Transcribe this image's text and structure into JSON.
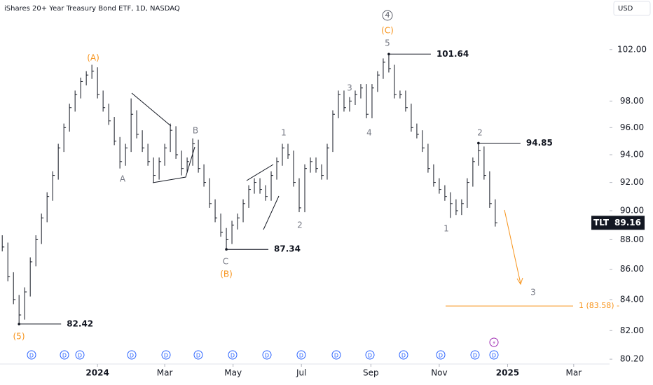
{
  "header": {
    "title": "iShares 20+ Year Treasury Bond ETF, 1D, NASDAQ",
    "currency": "USD"
  },
  "chart_data": {
    "type": "hlc",
    "log_scale": true,
    "color": "#131722",
    "x": [
      -85,
      -80,
      -75,
      -70,
      -65,
      -60,
      -55,
      -50,
      -45,
      -40,
      -35,
      -30,
      -25,
      -20,
      -15,
      -10,
      -5,
      0,
      5,
      10,
      15,
      20,
      25,
      30,
      35,
      40,
      45,
      50,
      55,
      60,
      65,
      70,
      75,
      80,
      85,
      90,
      95,
      100,
      105,
      110,
      115,
      120,
      125,
      130,
      135,
      140,
      145,
      150,
      155,
      160,
      165,
      170,
      175,
      180,
      185,
      190,
      195,
      200,
      205,
      210,
      215,
      220,
      225,
      230,
      235,
      240,
      245,
      250,
      255,
      260,
      265,
      270,
      275,
      280,
      285,
      290,
      295,
      300,
      305,
      310,
      315,
      320,
      325,
      330,
      335,
      340,
      345,
      350,
      355
    ],
    "high": [
      88.3,
      87.8,
      85.8,
      84.3,
      84.8,
      86.8,
      88.3,
      89.8,
      91.3,
      92.8,
      94.8,
      96.3,
      97.8,
      98.8,
      99.8,
      100.3,
      100.8,
      100.6,
      98.8,
      97.8,
      96.8,
      95.3,
      94.8,
      98.2,
      97.3,
      95.8,
      94.8,
      93.8,
      93.8,
      94.8,
      96.3,
      96.1,
      94.3,
      93.8,
      95.2,
      95.1,
      93.3,
      92.3,
      90.8,
      89.8,
      88.8,
      89.3,
      89.8,
      90.8,
      91.8,
      92.3,
      92.3,
      91.8,
      92.8,
      93.8,
      94.8,
      94.8,
      94.3,
      92.3,
      93.3,
      93.8,
      93.8,
      93.3,
      94.8,
      97.3,
      98.8,
      98.8,
      98.3,
      98.8,
      99.3,
      99.3,
      99.3,
      100.3,
      101.3,
      101.64,
      100.8,
      98.8,
      98.8,
      97.8,
      96.3,
      95.8,
      94.8,
      93.3,
      92.3,
      91.8,
      91.3,
      90.8,
      90.8,
      92.3,
      93.8,
      94.85,
      94.6,
      92.8,
      90.8
    ],
    "low": [
      87.2,
      85.2,
      83.7,
      82.42,
      82.7,
      84.2,
      86.2,
      87.7,
      89.2,
      90.7,
      92.2,
      94.2,
      95.7,
      97.2,
      98.2,
      99.2,
      99.7,
      98.2,
      97.2,
      96.2,
      94.7,
      93.0,
      93.2,
      94.2,
      95.2,
      94.2,
      93.2,
      92.0,
      92.2,
      93.2,
      94.2,
      93.7,
      92.5,
      92.7,
      93.2,
      92.7,
      91.7,
      90.2,
      89.2,
      88.2,
      87.34,
      87.7,
      88.7,
      89.2,
      90.2,
      91.2,
      91.2,
      90.7,
      90.7,
      92.2,
      93.2,
      93.7,
      91.7,
      89.9,
      89.9,
      92.7,
      92.7,
      92.2,
      92.2,
      94.2,
      96.7,
      97.2,
      97.2,
      97.7,
      98.2,
      96.7,
      96.7,
      98.7,
      99.7,
      100.2,
      98.2,
      98.2,
      97.2,
      95.7,
      95.2,
      94.2,
      92.7,
      91.7,
      91.2,
      90.7,
      89.5,
      89.7,
      89.7,
      90.2,
      91.7,
      93.2,
      92.2,
      90.2,
      88.9
    ],
    "close": [
      87.5,
      85.5,
      84.0,
      83.0,
      84.5,
      86.5,
      88.0,
      89.5,
      91.0,
      92.5,
      94.5,
      96.0,
      97.5,
      98.5,
      99.5,
      100.0,
      100.3,
      98.5,
      97.5,
      96.5,
      95.0,
      93.5,
      94.5,
      97.0,
      95.5,
      94.5,
      93.5,
      92.5,
      93.5,
      94.5,
      95.8,
      94.0,
      93.0,
      93.5,
      94.8,
      93.0,
      92.0,
      90.5,
      89.5,
      88.5,
      88.0,
      89.0,
      89.5,
      90.5,
      91.5,
      92.0,
      91.5,
      91.0,
      92.5,
      93.5,
      94.5,
      94.0,
      92.0,
      90.2,
      93.0,
      93.5,
      93.0,
      92.5,
      94.5,
      97.0,
      98.5,
      97.5,
      98.0,
      98.5,
      99.0,
      97.0,
      99.0,
      100.0,
      101.0,
      100.5,
      98.5,
      98.5,
      97.5,
      96.0,
      95.5,
      94.5,
      93.0,
      92.0,
      91.5,
      91.0,
      90.5,
      90.0,
      90.5,
      92.0,
      93.5,
      94.3,
      92.5,
      90.5,
      89.16
    ],
    "xlim": [
      -87,
      457
    ],
    "xticks": [
      {
        "value": 0,
        "label": "2024"
      },
      {
        "value": 60,
        "label": "Mar"
      },
      {
        "value": 121,
        "label": "May"
      },
      {
        "value": 182,
        "label": "Jul"
      },
      {
        "value": 244,
        "label": "Sep"
      },
      {
        "value": 305,
        "label": "Nov"
      },
      {
        "value": 366,
        "label": "2025"
      },
      {
        "value": 425,
        "label": "Mar"
      }
    ],
    "ylim": [
      79.9,
      106.0
    ],
    "yticks": [
      {
        "value": 80.2,
        "label": "80.20"
      },
      {
        "value": 82,
        "label": "82.00"
      },
      {
        "value": 84,
        "label": "84.00"
      },
      {
        "value": 86,
        "label": "86.00"
      },
      {
        "value": 88,
        "label": "88.00"
      },
      {
        "value": 90,
        "label": "90.00"
      },
      {
        "value": 92,
        "label": "92.00"
      },
      {
        "value": 94,
        "label": "94.00"
      },
      {
        "value": 96,
        "label": "96.00"
      },
      {
        "value": 98,
        "label": "98.00"
      },
      {
        "value": 102,
        "label": "102.00"
      }
    ],
    "symbol": "TLT",
    "target": {
      "label": "1 (83.58) -",
      "value": 83.58,
      "color": "#f7931a"
    },
    "wave_labels": [
      "(5)",
      "(A)",
      "A",
      "B",
      "C",
      "(B)",
      "1",
      "2",
      "3",
      "4",
      "5",
      "(C)",
      "4",
      "1",
      "2",
      "3"
    ],
    "dividend_marker": "D"
  }
}
